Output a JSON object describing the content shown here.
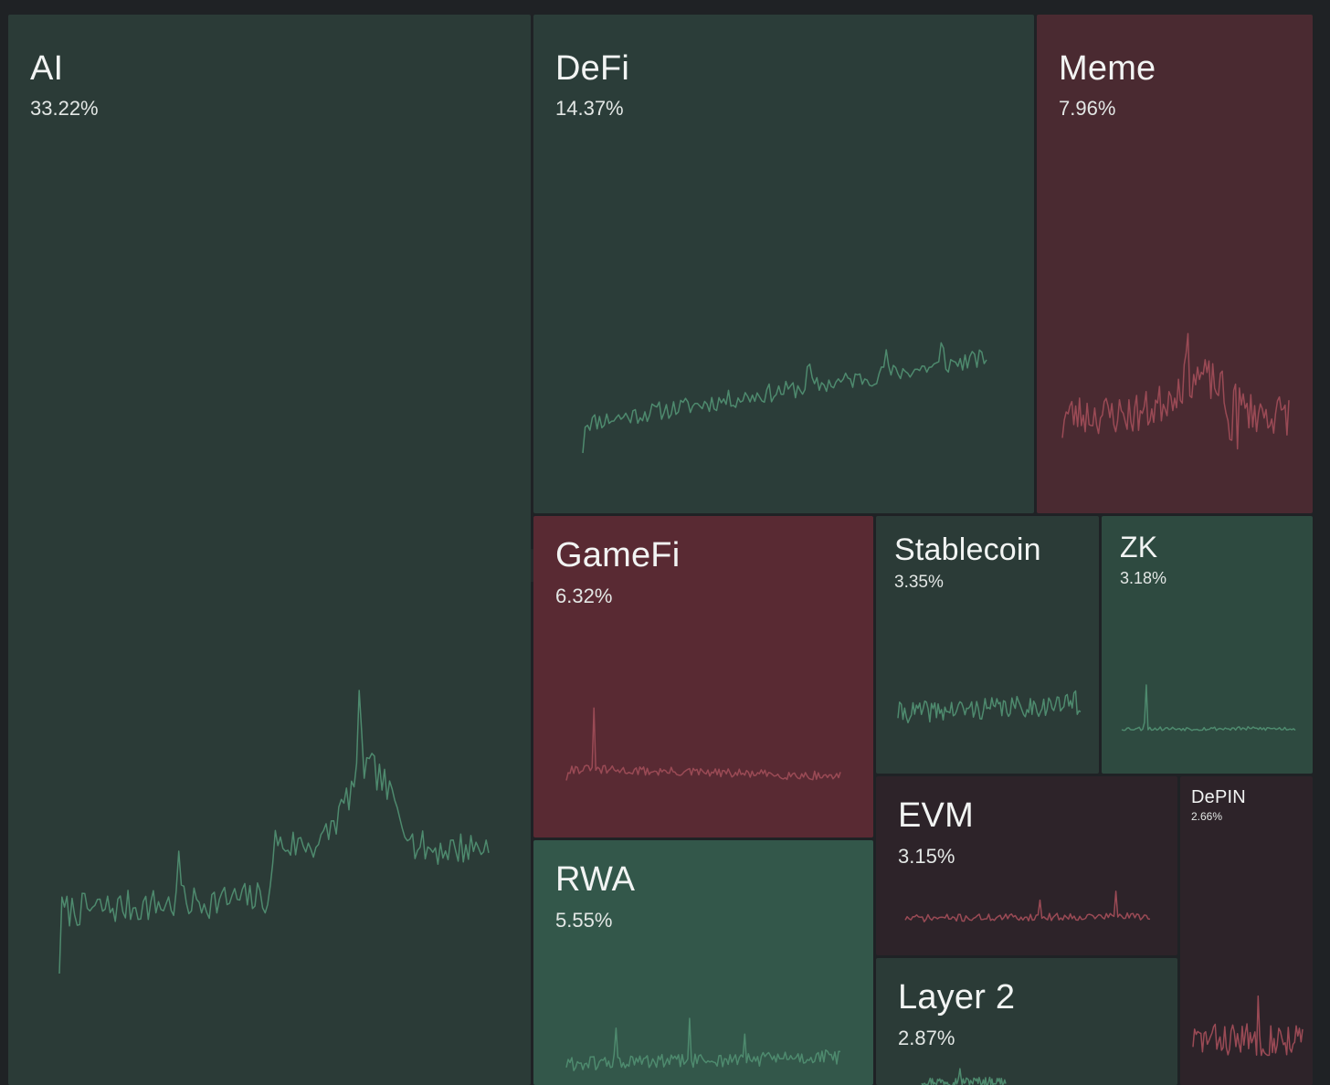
{
  "chart_data": {
    "type": "treemap",
    "title": "",
    "colors": {
      "background": "#1f2225",
      "up_tile": "#2b3b37",
      "down_tile": "#4a2a31",
      "up_line": "#4e8a6e",
      "down_line": "#9a4a55"
    },
    "tiles": [
      {
        "id": "ai",
        "label": "AI",
        "value": "33.22%",
        "weight": 33.22,
        "trend": "up",
        "fill": "#2b3b37",
        "spark": {
          "seed": 7,
          "n": 170,
          "profile": "ai"
        }
      },
      {
        "id": "defi",
        "label": "DeFi",
        "value": "14.37%",
        "weight": 14.37,
        "trend": "up",
        "fill": "#2b3d39",
        "spark": {
          "seed": 11,
          "n": 170,
          "profile": "defi"
        }
      },
      {
        "id": "meme",
        "label": "Meme",
        "value": "7.96%",
        "weight": 7.96,
        "trend": "down",
        "fill": "#4a2a31",
        "spark": {
          "seed": 23,
          "n": 120,
          "profile": "meme"
        }
      },
      {
        "id": "gamefi",
        "label": "GameFi",
        "value": "6.32%",
        "weight": 6.32,
        "trend": "down",
        "fill": "#592a33",
        "spark": {
          "seed": 31,
          "n": 150,
          "profile": "gamefi"
        }
      },
      {
        "id": "stablecoin",
        "label": "Stablecoin",
        "value": "3.35%",
        "weight": 3.35,
        "trend": "up",
        "fill": "#2b3b37",
        "spark": {
          "seed": 41,
          "n": 110,
          "profile": "stable"
        }
      },
      {
        "id": "zk",
        "label": "ZK",
        "value": "3.18%",
        "weight": 3.18,
        "trend": "up",
        "fill": "#2e4a40",
        "spark": {
          "seed": 53,
          "n": 100,
          "profile": "zk"
        }
      },
      {
        "id": "rwa",
        "label": "RWA",
        "value": "5.55%",
        "weight": 5.55,
        "trend": "up",
        "fill": "#33574a",
        "spark": {
          "seed": 61,
          "n": 150,
          "profile": "rwa"
        }
      },
      {
        "id": "evm",
        "label": "EVM",
        "value": "3.15%",
        "weight": 3.15,
        "trend": "down",
        "fill": "#2d2329",
        "spark": {
          "seed": 71,
          "n": 130,
          "profile": "evm"
        }
      },
      {
        "id": "depin",
        "label": "DePIN",
        "value": "2.66%",
        "weight": 2.66,
        "trend": "down",
        "fill": "#2d2329",
        "spark": {
          "seed": 83,
          "n": 70,
          "profile": "depin"
        }
      },
      {
        "id": "layer2",
        "label": "Layer 2",
        "value": "2.87%",
        "weight": 2.87,
        "trend": "up",
        "fill": "#2b3b37",
        "spark": {
          "seed": 97,
          "n": 80,
          "profile": "layer2"
        }
      }
    ]
  }
}
